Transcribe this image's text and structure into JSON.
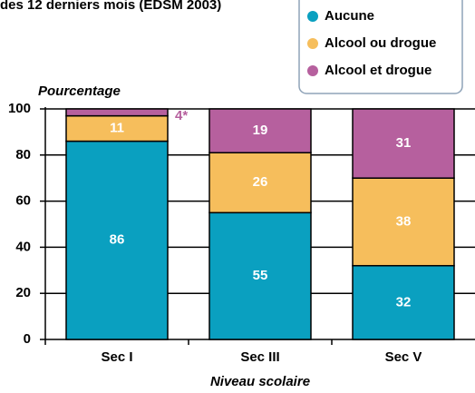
{
  "chart_data": {
    "type": "stacked_bar",
    "title": "des 12 derniers mois (EDSM 2003)",
    "y_axis_label": "Pourcentage",
    "x_axis_label": "Niveau scolaire",
    "categories": [
      "Sec I",
      "Sec III",
      "Sec V"
    ],
    "series": [
      {
        "name": "Aucune",
        "color": "#0aa0c0",
        "values": [
          86,
          55,
          32
        ]
      },
      {
        "name": "Alcool ou drogue",
        "color": "#f6be5c",
        "values": [
          11,
          26,
          38
        ]
      },
      {
        "name": "Alcool et drogue",
        "color": "#b6609e",
        "values": [
          4,
          19,
          31
        ],
        "value_labels": [
          "4*",
          "19",
          "31"
        ]
      }
    ],
    "ylim": [
      0,
      100
    ],
    "yticks": [
      0,
      20,
      40,
      60,
      80,
      100
    ],
    "grid": true,
    "legend": "top-right"
  }
}
